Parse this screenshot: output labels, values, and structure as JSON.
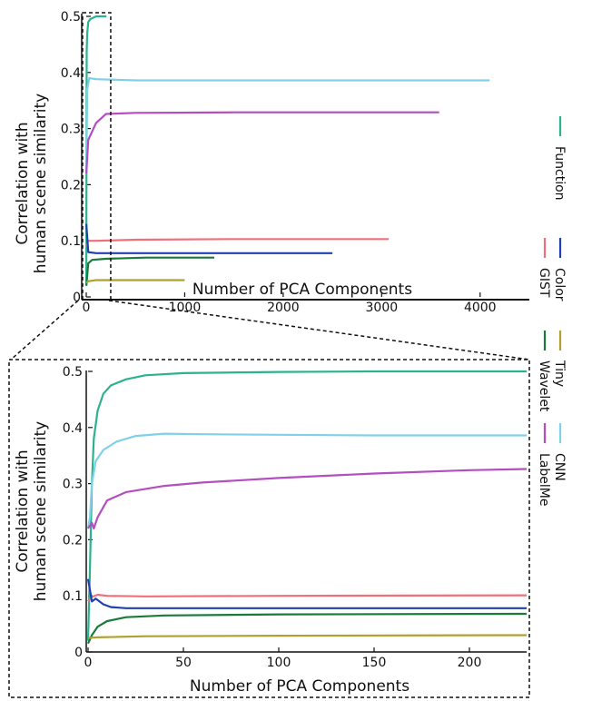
{
  "chart_data": [
    {
      "type": "line",
      "panel": "full",
      "xlabel": "Number of PCA Components",
      "ylabel": [
        "Correlation with",
        "human scene similarity"
      ],
      "xlim": [
        0,
        4500
      ],
      "ylim": [
        0,
        0.5
      ],
      "xticks": [
        0,
        1000,
        2000,
        3000,
        4000
      ],
      "yticks": [
        0,
        0.1,
        0.2,
        0.3,
        0.4,
        0.5
      ],
      "ytick_labels": [
        "0",
        "0.1",
        "0.2",
        "0.3",
        "0.4",
        "0.5"
      ],
      "grid": false,
      "zoom_box": {
        "x": [
          0,
          230
        ],
        "y": [
          0,
          0.5
        ]
      },
      "series": [
        {
          "name": "Function",
          "color": "#2ab38e",
          "x": [
            1,
            3,
            5,
            10,
            20,
            40,
            100,
            150,
            205
          ],
          "y": [
            0.02,
            0.3,
            0.44,
            0.47,
            0.49,
            0.495,
            0.5,
            0.5,
            0.5
          ]
        },
        {
          "name": "CNN",
          "color": "#7fd0ea",
          "x": [
            1,
            10,
            30,
            100,
            500,
            2000,
            4096
          ],
          "y": [
            0.22,
            0.37,
            0.39,
            0.388,
            0.386,
            0.386,
            0.386
          ]
        },
        {
          "name": "LabelMe",
          "color": "#b44ec0",
          "x": [
            1,
            20,
            100,
            200,
            500,
            1500,
            3584
          ],
          "y": [
            0.22,
            0.28,
            0.31,
            0.326,
            0.328,
            0.329,
            0.329
          ]
        },
        {
          "name": "GIST",
          "color": "#f0707a",
          "x": [
            1,
            20,
            100,
            512,
            1500,
            3072
          ],
          "y": [
            0.09,
            0.1,
            0.1,
            0.102,
            0.103,
            0.103
          ]
        },
        {
          "name": "Color",
          "color": "#2040b0",
          "x": [
            1,
            20,
            100,
            500,
            1500,
            2500
          ],
          "y": [
            0.13,
            0.08,
            0.078,
            0.078,
            0.078,
            0.078
          ]
        },
        {
          "name": "Wavelet",
          "color": "#1a7a3a",
          "x": [
            1,
            20,
            60,
            200,
            600,
            1300
          ],
          "y": [
            0.02,
            0.06,
            0.066,
            0.068,
            0.07,
            0.07
          ]
        },
        {
          "name": "Tiny",
          "color": "#b0a030",
          "x": [
            1,
            20,
            100,
            300,
            600,
            1000
          ],
          "y": [
            0.025,
            0.028,
            0.03,
            0.03,
            0.03,
            0.03
          ]
        }
      ]
    },
    {
      "type": "line",
      "panel": "zoom",
      "xlabel": "Number of PCA Components",
      "ylabel": [
        "Correlation with",
        "human scene similarity"
      ],
      "xlim": [
        0,
        230
      ],
      "ylim": [
        0,
        0.5
      ],
      "xticks": [
        0,
        50,
        100,
        150,
        200
      ],
      "yticks": [
        0,
        0.1,
        0.2,
        0.3,
        0.4,
        0.5
      ],
      "ytick_labels": [
        "0",
        "0.1",
        "0.2",
        "0.3",
        "0.4",
        "0.5"
      ],
      "grid": false,
      "series": [
        {
          "name": "Function",
          "color": "#2ab38e",
          "x": [
            0,
            1,
            2,
            3,
            5,
            8,
            12,
            20,
            30,
            50,
            100,
            150,
            230
          ],
          "y": [
            0.02,
            0.15,
            0.3,
            0.38,
            0.43,
            0.46,
            0.475,
            0.486,
            0.493,
            0.497,
            0.499,
            0.5,
            0.5
          ]
        },
        {
          "name": "CNN",
          "color": "#7fd0ea",
          "x": [
            0,
            1,
            2,
            4,
            8,
            15,
            25,
            40,
            60,
            100,
            150,
            230
          ],
          "y": [
            0.22,
            0.24,
            0.3,
            0.34,
            0.36,
            0.375,
            0.385,
            0.389,
            0.388,
            0.387,
            0.386,
            0.386
          ]
        },
        {
          "name": "LabelMe",
          "color": "#b44ec0",
          "x": [
            0,
            2,
            3,
            5,
            10,
            20,
            40,
            60,
            100,
            150,
            200,
            230
          ],
          "y": [
            0.22,
            0.23,
            0.22,
            0.24,
            0.27,
            0.285,
            0.296,
            0.302,
            0.31,
            0.318,
            0.324,
            0.326
          ]
        },
        {
          "name": "GIST",
          "color": "#f0707a",
          "x": [
            0,
            2,
            5,
            10,
            30,
            100,
            230
          ],
          "y": [
            0.09,
            0.098,
            0.102,
            0.1,
            0.099,
            0.1,
            0.101
          ]
        },
        {
          "name": "Color",
          "color": "#2040b0",
          "x": [
            0,
            1,
            2,
            4,
            8,
            12,
            20,
            40,
            100,
            230
          ],
          "y": [
            0.13,
            0.11,
            0.09,
            0.095,
            0.085,
            0.08,
            0.078,
            0.078,
            0.078,
            0.078
          ]
        },
        {
          "name": "Wavelet",
          "color": "#1a7a3a",
          "x": [
            0,
            2,
            5,
            10,
            20,
            40,
            100,
            230
          ],
          "y": [
            0.015,
            0.03,
            0.045,
            0.055,
            0.062,
            0.065,
            0.067,
            0.068
          ]
        },
        {
          "name": "Tiny",
          "color": "#b0a030",
          "x": [
            0,
            5,
            30,
            100,
            230
          ],
          "y": [
            0.025,
            0.026,
            0.028,
            0.029,
            0.03
          ]
        }
      ]
    }
  ],
  "legend": {
    "placement": "right",
    "orientation": "rotated 90°",
    "items": [
      "Function",
      "Color",
      "GIST",
      "Tiny",
      "Wavelet",
      "CNN",
      "LabelMe"
    ]
  }
}
